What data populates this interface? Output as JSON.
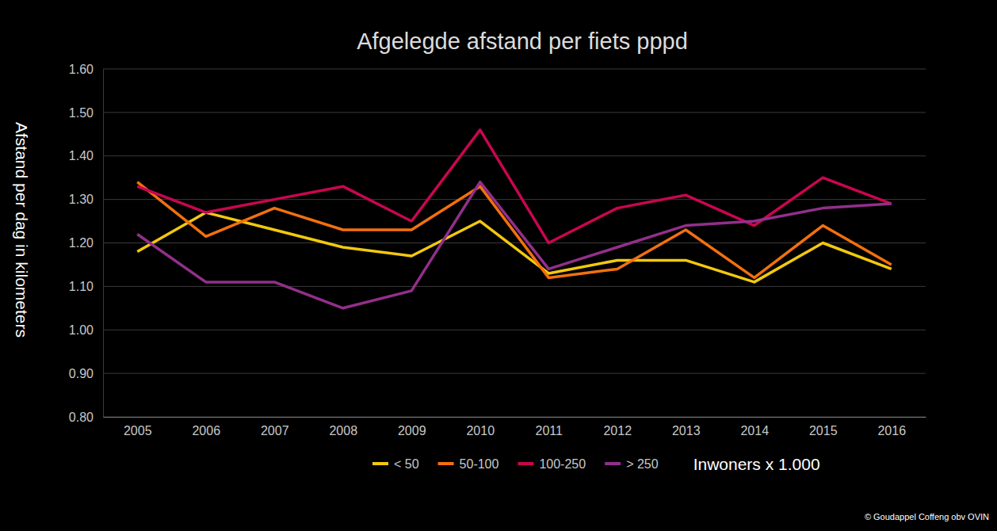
{
  "chart_data": {
    "type": "line",
    "title": "Afgelegde afstand per fiets pppd",
    "ylabel": "Afstand per dag in kilometers",
    "legend_title": "Inwoners x 1.000",
    "source": "© Goudappel Coffeng obv OVIN",
    "categories": [
      "2005",
      "2006",
      "2007",
      "2008",
      "2009",
      "2010",
      "2011",
      "2012",
      "2013",
      "2014",
      "2015",
      "2016"
    ],
    "series": [
      {
        "name": "< 50",
        "color": "#f2c80f",
        "values": [
          1.18,
          1.27,
          1.23,
          1.19,
          1.17,
          1.25,
          1.13,
          1.16,
          1.16,
          1.11,
          1.2,
          1.14
        ]
      },
      {
        "name": "50-100",
        "color": "#f2700e",
        "values": [
          1.34,
          1.215,
          1.28,
          1.23,
          1.23,
          1.33,
          1.12,
          1.14,
          1.23,
          1.12,
          1.24,
          1.15
        ]
      },
      {
        "name": "100-250",
        "color": "#c9064f",
        "values": [
          1.33,
          1.27,
          1.3,
          1.33,
          1.25,
          1.46,
          1.2,
          1.28,
          1.31,
          1.24,
          1.35,
          1.29
        ]
      },
      {
        "name": "> 250",
        "color": "#922f8a",
        "values": [
          1.22,
          1.11,
          1.11,
          1.05,
          1.09,
          1.34,
          1.14,
          1.19,
          1.24,
          1.25,
          1.28,
          1.29
        ]
      }
    ],
    "ylim": [
      0.8,
      1.6
    ],
    "yticks": [
      {
        "value": 0.8,
        "label": "0.80"
      },
      {
        "value": 0.9,
        "label": "0.90"
      },
      {
        "value": 1.0,
        "label": "1.00"
      },
      {
        "value": 1.1,
        "label": "1.10"
      },
      {
        "value": 1.2,
        "label": "1.20"
      },
      {
        "value": 1.3,
        "label": "1.30"
      },
      {
        "value": 1.4,
        "label": "1.40"
      },
      {
        "value": 1.5,
        "label": "1.50"
      },
      {
        "value": 1.6,
        "label": "1.60"
      }
    ],
    "grid": true,
    "legend": "bottom"
  }
}
